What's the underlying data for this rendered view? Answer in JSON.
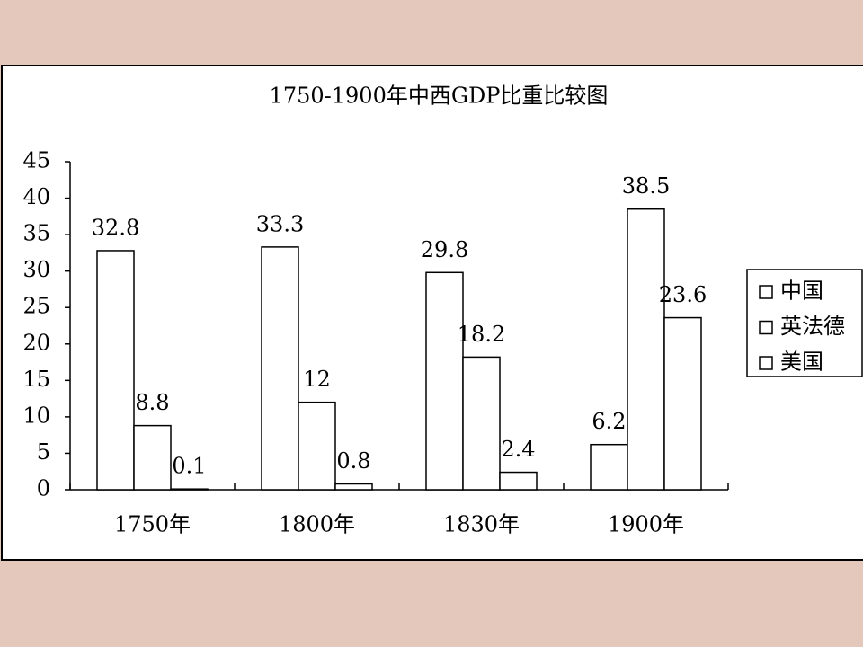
{
  "chart_data": {
    "type": "bar",
    "title": "1750-1900年中西GDP比重比较图",
    "categories": [
      "1750年",
      "1800年",
      "1830年",
      "1900年"
    ],
    "series": [
      {
        "name": "中国",
        "color": "#ffffff",
        "values": [
          32.8,
          33.3,
          29.8,
          6.2
        ]
      },
      {
        "name": "英法德",
        "color": "#ffffff",
        "values": [
          8.8,
          12,
          18.2,
          38.5
        ]
      },
      {
        "name": "美国",
        "color": "#ffffff",
        "values": [
          0.1,
          0.8,
          2.4,
          23.6
        ]
      }
    ],
    "ylim": [
      0,
      45
    ],
    "yticks": [
      0,
      5,
      10,
      15,
      20,
      25,
      30,
      35,
      40,
      45
    ],
    "grid": false,
    "legend": "right"
  }
}
